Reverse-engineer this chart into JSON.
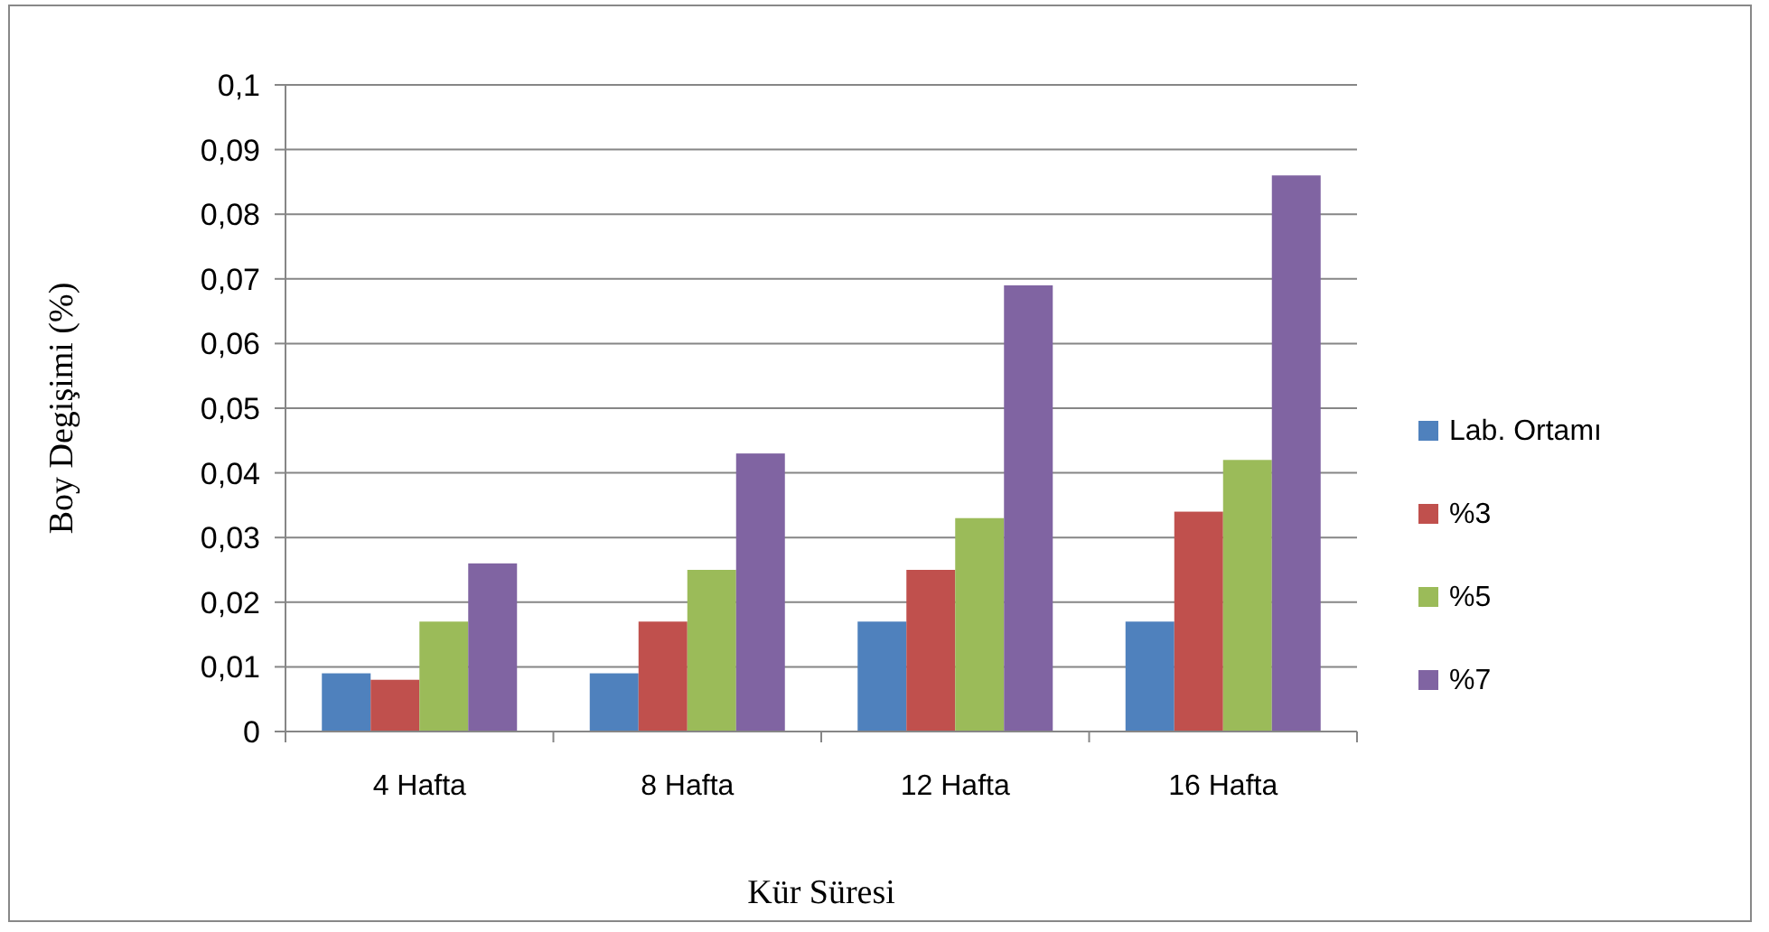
{
  "chart_data": {
    "type": "bar",
    "xlabel": "Kür Süresi",
    "ylabel": "Boy Degişimi (%)",
    "categories": [
      "4 Hafta",
      "8 Hafta",
      "12 Hafta",
      "16 Hafta"
    ],
    "series": [
      {
        "name": "Lab. Ortamı",
        "color": "#4f81bd",
        "values": [
          0.009,
          0.009,
          0.017,
          0.017
        ]
      },
      {
        "name": "%3",
        "color": "#c0504d",
        "values": [
          0.008,
          0.017,
          0.025,
          0.034
        ]
      },
      {
        "name": "%5",
        "color": "#9bbb59",
        "values": [
          0.017,
          0.025,
          0.033,
          0.042
        ]
      },
      {
        "name": "%7",
        "color": "#8064a2",
        "values": [
          0.026,
          0.043,
          0.069,
          0.086
        ]
      }
    ],
    "ylim": [
      0,
      0.1
    ],
    "yticks": [
      0,
      {
        "value": 0.01,
        "label": "0,01"
      },
      {
        "value": 0.02,
        "label": "0,02"
      },
      {
        "value": 0.03,
        "label": "0,03"
      },
      {
        "value": 0.04,
        "label": "0,04"
      },
      {
        "value": 0.05,
        "label": "0,05"
      },
      {
        "value": 0.06,
        "label": "0,06"
      },
      {
        "value": 0.07,
        "label": "0,07"
      },
      {
        "value": 0.08,
        "label": "0,08"
      },
      {
        "value": 0.09,
        "label": "0,09"
      },
      {
        "value": 0.1,
        "label": "0,1"
      }
    ],
    "grid": "y",
    "legend": "right"
  }
}
